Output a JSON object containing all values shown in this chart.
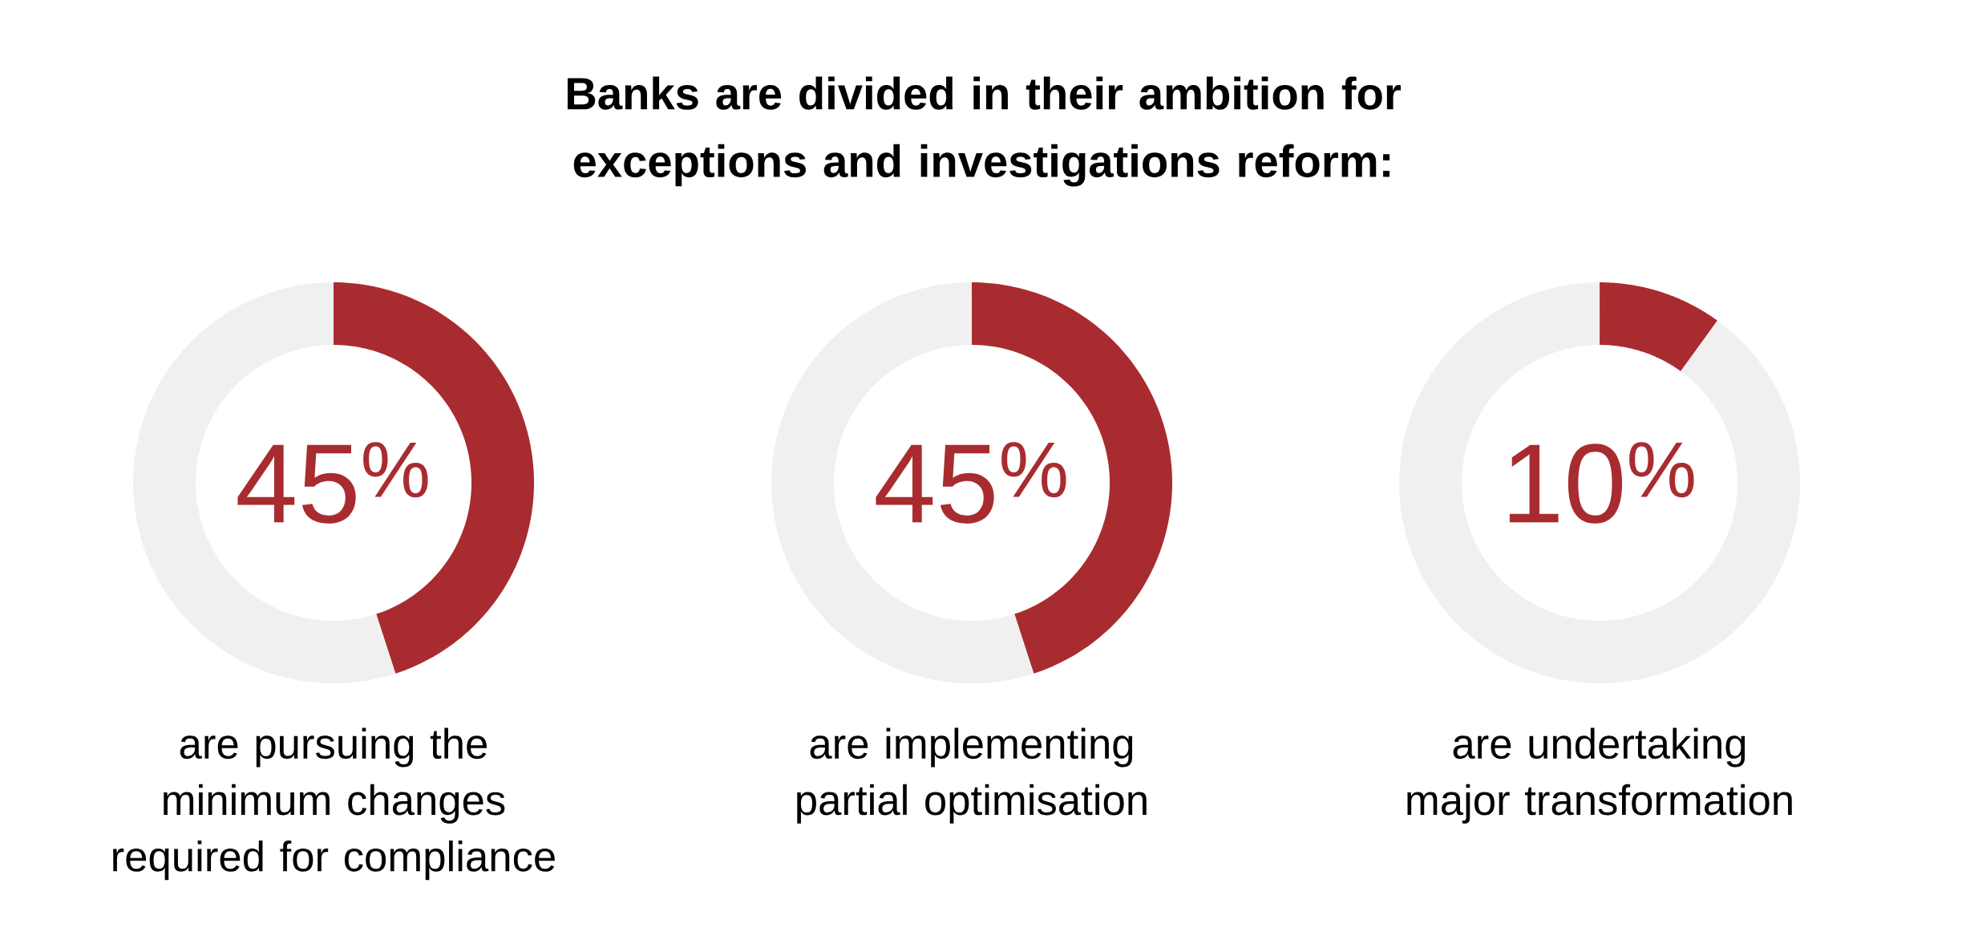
{
  "chart_data": [
    {
      "type": "other",
      "title": "Banks are divided in their ambition for exceptions and investigations reform:"
    },
    {
      "type": "donut",
      "title": "are pursuing the minimum changes required for compliance",
      "categories": [
        null,
        null
      ],
      "values": [
        45,
        55
      ],
      "colors": [
        "#a82c2f",
        "#f0f0f0"
      ],
      "annotations": [
        "45$^{%}$"
      ]
    },
    {
      "type": "donut",
      "title": "are implementing partial optimisation",
      "categories": [
        null,
        null
      ],
      "values": [
        45,
        55
      ],
      "colors": [
        "#a82c2f",
        "#f0f0f0"
      ],
      "annotations": [
        "45$^{%}$"
      ]
    },
    {
      "type": "donut",
      "title": "are undertaking major transformation",
      "categories": [
        null,
        null
      ],
      "values": [
        10,
        90
      ],
      "colors": [
        "#a82c2f",
        "#f0f0f0"
      ],
      "annotations": [
        "10$^{%}$"
      ]
    }
  ]
}
